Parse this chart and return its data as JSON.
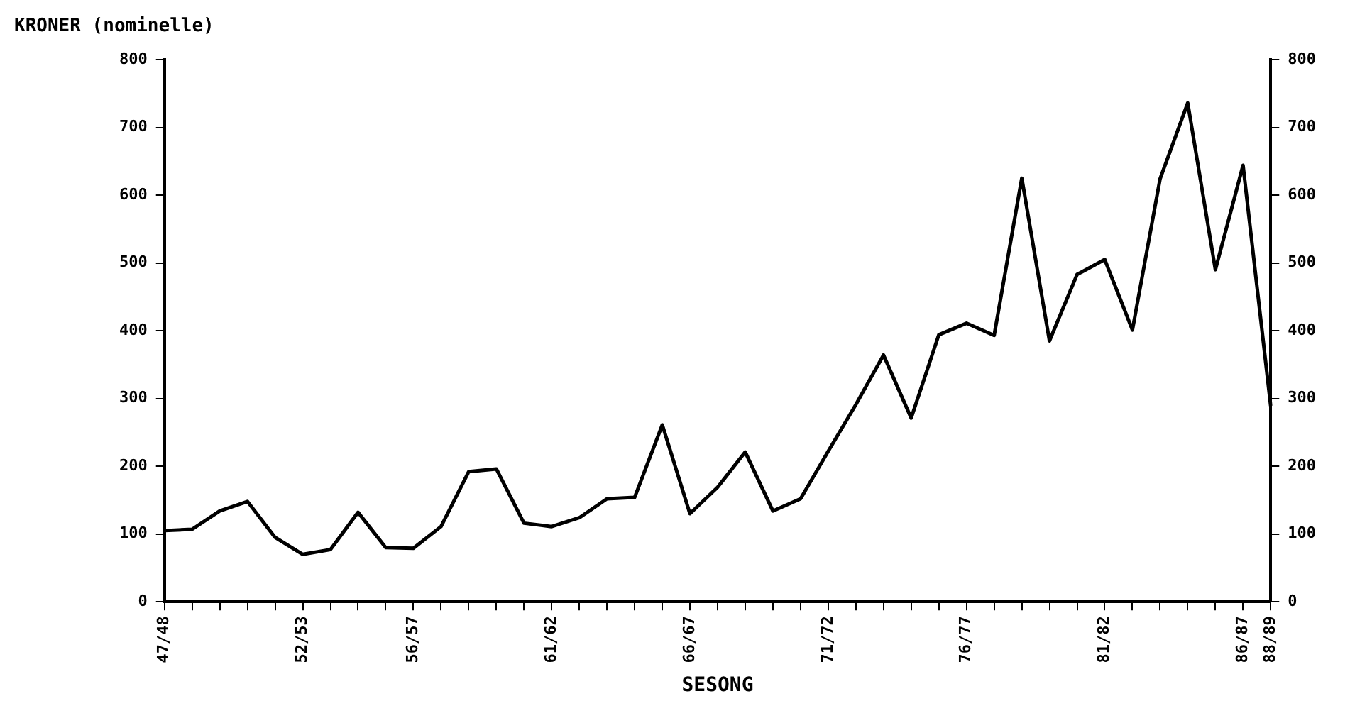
{
  "chart_data": {
    "type": "line",
    "ylabel": "KRONER (nominelle)",
    "xlabel": "SESONG",
    "categories": [
      "47/48",
      null,
      null,
      null,
      null,
      "52/53",
      null,
      null,
      null,
      "56/57",
      null,
      null,
      null,
      null,
      "61/62",
      null,
      null,
      null,
      null,
      "66/67",
      null,
      null,
      null,
      null,
      "71/72",
      null,
      null,
      null,
      null,
      "76/77",
      null,
      null,
      null,
      null,
      "81/82",
      null,
      null,
      null,
      null,
      "86/87",
      "88/89"
    ],
    "series": [
      {
        "color": "#000000",
        "values": [
          105,
          107,
          134,
          148,
          95,
          70,
          77,
          132,
          80,
          79,
          111,
          192,
          196,
          116,
          111,
          124,
          152,
          154,
          261,
          130,
          169,
          221,
          134,
          152,
          222,
          291,
          364,
          271,
          394,
          411,
          393,
          625,
          385,
          483,
          505,
          401,
          624,
          736,
          490,
          644,
          289
        ]
      }
    ],
    "ylim": [
      0,
      800
    ],
    "yticks": [
      0,
      100,
      200,
      300,
      400,
      500,
      600,
      700,
      800
    ],
    "y2lim": [
      0,
      800
    ],
    "y2ticks": [
      0,
      100,
      200,
      300,
      400,
      500,
      600,
      700,
      800
    ],
    "grid": false,
    "legend": false,
    "marker": "none",
    "line_style": "solid"
  }
}
